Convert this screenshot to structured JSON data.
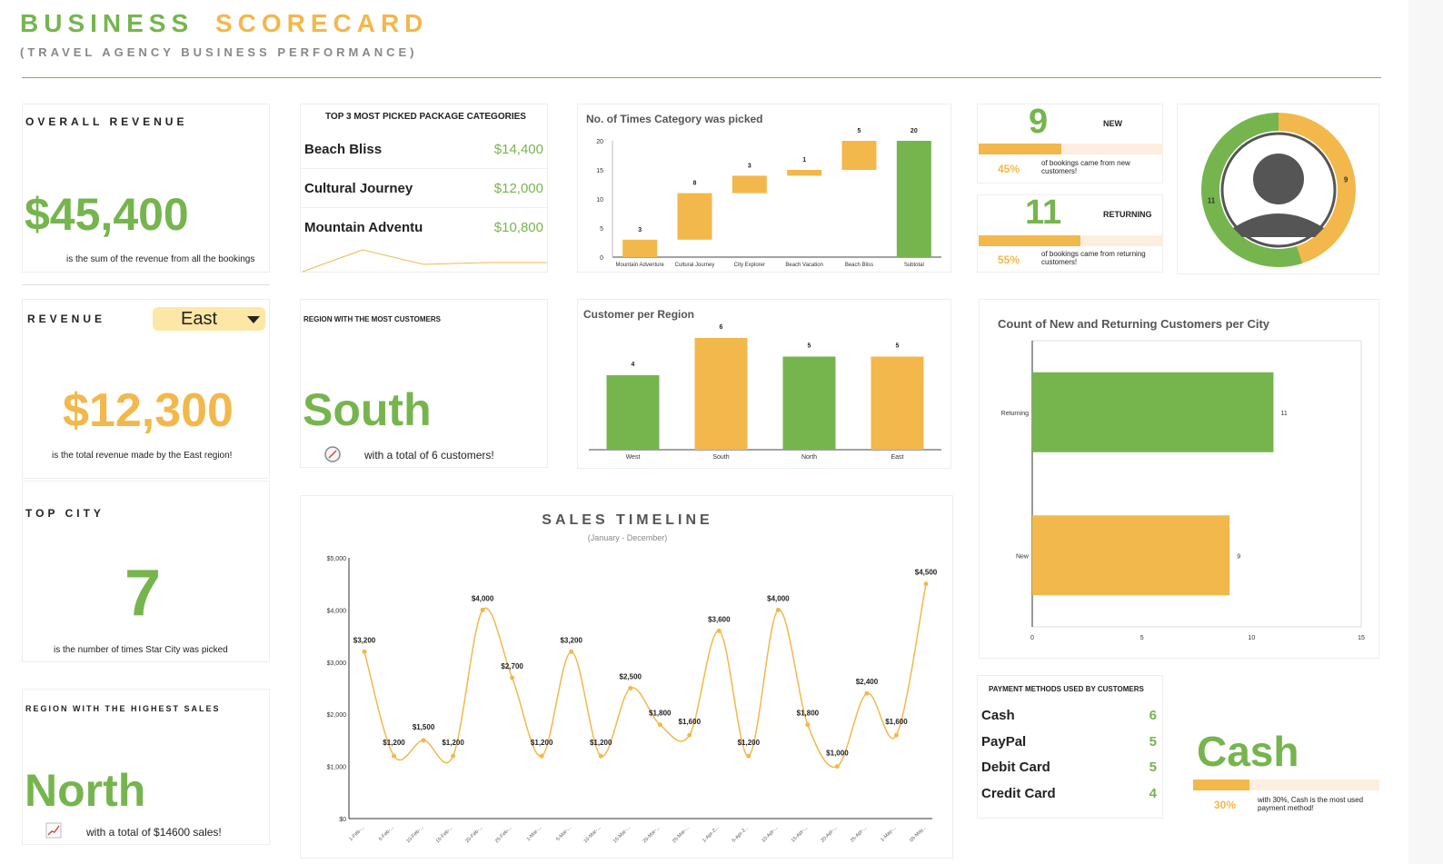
{
  "header": {
    "title_word1": "BUSINESS",
    "title_word2": "SCORECARD",
    "subtitle": "(TRAVEL AGENCY BUSINESS PERFORMANCE)"
  },
  "overall_revenue": {
    "label": "OVERALL REVENUE",
    "value": "$45,400",
    "caption": "is the sum of the revenue  from all the bookings"
  },
  "top_packages": {
    "title": "TOP 3 MOST PICKED PACKAGE CATEGORIES",
    "items": [
      {
        "name": "Beach Bliss",
        "value": "$14,400"
      },
      {
        "name": "Cultural Journey",
        "value": "$12,000"
      },
      {
        "name": "Mountain Adventu",
        "value": "$10,800"
      }
    ]
  },
  "revenue_region": {
    "label": "REVENUE",
    "selected_region": "East",
    "value": "$12,300",
    "caption": "is the total revenue made by the East region!"
  },
  "region_most_customers": {
    "title": "REGION WITH THE MOST CUSTOMERS",
    "value": "South",
    "caption": "with a total of 6 customers!",
    "icon": "compass-icon"
  },
  "top_city": {
    "label": "TOP CITY",
    "value": "7",
    "caption": "is the number of times Star City was picked"
  },
  "region_highest_sales": {
    "label": "REGION WITH THE HIGHEST SALES",
    "value": "North",
    "caption": "with a total of $14600 sales!",
    "icon": "chart-up-icon"
  },
  "new_customers": {
    "count": "9",
    "label": "NEW",
    "pct": "45%",
    "pct_value": 0.45,
    "caption": "of bookings came from new customers!"
  },
  "returning_customers": {
    "count": "11",
    "label": "RETURNING",
    "pct": "55%",
    "pct_value": 0.55,
    "caption": "of bookings came from returning customers!"
  },
  "payment_methods": {
    "title": "PAYMENT METHODS USED BY CUSTOMERS",
    "items": [
      {
        "name": "Cash",
        "count": "6"
      },
      {
        "name": "PayPal",
        "count": "5"
      },
      {
        "name": "Debit Card",
        "count": "5"
      },
      {
        "name": "Credit Card",
        "count": "4"
      }
    ],
    "top_method": "Cash",
    "top_pct": "30%",
    "top_pct_value": 0.3,
    "caption": "with 30%, Cash is the most used payment method!"
  },
  "colors": {
    "green": "#76b54e",
    "orange": "#f2b84b",
    "light_track": "#fcefe0",
    "avatar": "#555555"
  },
  "chart_data": [
    {
      "id": "waterfall",
      "type": "bar",
      "title": "No. of Times Category was picked",
      "categories": [
        "Mountain Adventure",
        "Cultural Journey",
        "City Explorer",
        "Beach Vacation",
        "Beach Bliss",
        "Subtotal"
      ],
      "values": [
        3,
        8,
        3,
        1,
        5,
        20
      ],
      "bases": [
        0,
        3,
        11,
        14,
        15,
        0
      ],
      "colors": [
        "orange",
        "orange",
        "orange",
        "orange",
        "orange",
        "green"
      ],
      "yticks": [
        "0",
        "5",
        "10",
        "15",
        "20"
      ],
      "ylim": [
        0,
        20
      ]
    },
    {
      "id": "customer_region",
      "type": "bar",
      "title": "Customer per Region",
      "categories": [
        "West",
        "South",
        "North",
        "East"
      ],
      "values": [
        4,
        6,
        5,
        5
      ],
      "colors": [
        "green",
        "orange",
        "green",
        "orange"
      ],
      "ylim": [
        0,
        6
      ]
    },
    {
      "id": "donut",
      "type": "pie",
      "slices": [
        {
          "label": "New",
          "value": 9,
          "color": "orange"
        },
        {
          "label": "Returning",
          "value": 11,
          "color": "green"
        }
      ]
    },
    {
      "id": "city_customers",
      "type": "bar",
      "orientation": "horizontal",
      "title": "Count of New and Returning Customers per City",
      "categories": [
        "Returning",
        "New"
      ],
      "values": [
        11,
        9
      ],
      "colors": [
        "green",
        "orange"
      ],
      "xticks": [
        "0",
        "5",
        "10",
        "15"
      ],
      "xlim": [
        0,
        15
      ]
    },
    {
      "id": "sales_timeline",
      "type": "line",
      "title": "SALES TIMELINE",
      "subtitle": "(January - December)",
      "x": [
        "1-Feb-...",
        "5-Feb-...",
        "10-Feb-...",
        "15-Feb-...",
        "20-Feb-...",
        "25-Feb-...",
        "1-Mar-...",
        "5-Mar-...",
        "10-Mar-...",
        "15-Mar-...",
        "20-Mar-...",
        "25-Mar-...",
        "1-Apr-2...",
        "5-Apr-2...",
        "10-Apr-...",
        "15-Apr-...",
        "20-Apr-...",
        "25-Apr-...",
        "1-May-...",
        "05-May..."
      ],
      "y": [
        3200,
        1200,
        1500,
        1200,
        4000,
        2700,
        1200,
        3200,
        1200,
        2500,
        1800,
        1600,
        3600,
        1200,
        4000,
        1800,
        1000,
        2400,
        1600,
        4500
      ],
      "labels": [
        "$3,200",
        "$1,200",
        "$1,500",
        "$1,200",
        "$4,000",
        "$2,700",
        "$1,200",
        "$3,200",
        "$1,200",
        "$2,500",
        "$1,800",
        "$1,600",
        "$3,600",
        "$1,200",
        "$4,000",
        "$1,800",
        "$1,000",
        "$2,400",
        "$1,600",
        "$4,500"
      ],
      "yticks": [
        "$0",
        "$1,000",
        "$2,000",
        "$3,000",
        "$4,000",
        "$5,000"
      ],
      "ylim": [
        0,
        5000
      ]
    }
  ]
}
